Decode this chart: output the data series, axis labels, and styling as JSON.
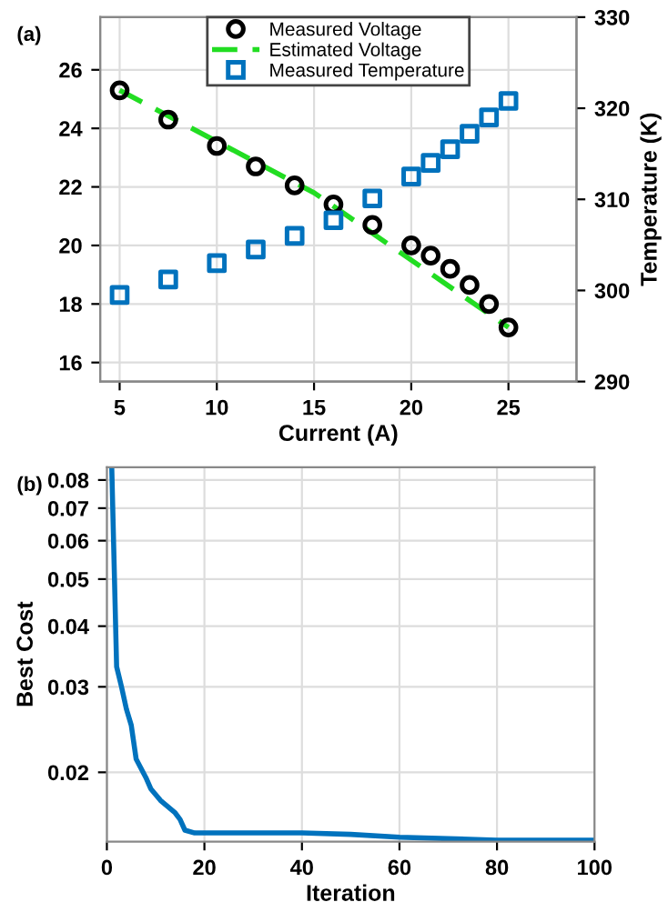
{
  "chart_data": [
    {
      "type": "scatter",
      "annotations": [
        "(a)"
      ],
      "xlabel": "Current (A)",
      "y2label": "Temperature (K)",
      "xlim": [
        4,
        28.5
      ],
      "xticks": [
        5,
        10,
        15,
        20,
        25
      ],
      "ylim": [
        15.35,
        27.8
      ],
      "yticks": [
        16,
        18,
        20,
        22,
        24,
        26
      ],
      "y2lim": [
        290,
        330
      ],
      "y2ticks": [
        290,
        300,
        310,
        320,
        330
      ],
      "grid": true,
      "legend": "top",
      "series": [
        {
          "name": "Measured Voltage",
          "type": "scatter",
          "marker": "circle",
          "color": "#000000",
          "x": [
            5,
            7.5,
            10,
            12,
            14,
            16,
            18,
            20,
            21,
            22,
            23,
            24,
            25
          ],
          "values": [
            25.3,
            24.3,
            23.4,
            22.7,
            22.05,
            21.4,
            20.7,
            20.0,
            19.65,
            19.2,
            18.65,
            18.0,
            17.2
          ]
        },
        {
          "name": "Estimated Voltage",
          "type": "line",
          "line_style": "dashed",
          "color": "#22dd22",
          "x": [
            5,
            15,
            25
          ],
          "values": [
            25.3,
            21.8,
            17.2
          ]
        },
        {
          "name": "Measured Temperature",
          "type": "scatter",
          "marker": "square",
          "axis": "y2",
          "color": "#0072bd",
          "x": [
            5,
            7.5,
            10,
            12,
            14,
            16,
            18,
            20,
            21,
            22,
            23,
            24,
            25
          ],
          "values": [
            299.5,
            301.2,
            303.0,
            304.5,
            306.0,
            307.7,
            310.1,
            312.5,
            314.0,
            315.5,
            317.2,
            319.0,
            320.8
          ]
        }
      ]
    },
    {
      "type": "line",
      "annotations": [
        "(b)"
      ],
      "xlabel": "Iteration",
      "ylabel": "Best Cost",
      "log": "y",
      "xlim": [
        0,
        100
      ],
      "xticks": [
        0,
        20,
        40,
        60,
        80,
        100
      ],
      "ylim": [
        0.0144,
        0.085
      ],
      "yticks": [
        0.02,
        0.03,
        0.04,
        0.05,
        0.06,
        0.07,
        0.08
      ],
      "grid": true,
      "series": [
        {
          "color": "#0072bd",
          "x": [
            1,
            2,
            3,
            4,
            5,
            6,
            8,
            9,
            11,
            14,
            15,
            16,
            18,
            40,
            50,
            60,
            80,
            100
          ],
          "values": [
            0.085,
            0.033,
            0.03,
            0.027,
            0.025,
            0.0213,
            0.0195,
            0.0185,
            0.0175,
            0.0165,
            0.016,
            0.0152,
            0.015,
            0.015,
            0.0149,
            0.0147,
            0.0145,
            0.0145
          ]
        }
      ]
    }
  ]
}
